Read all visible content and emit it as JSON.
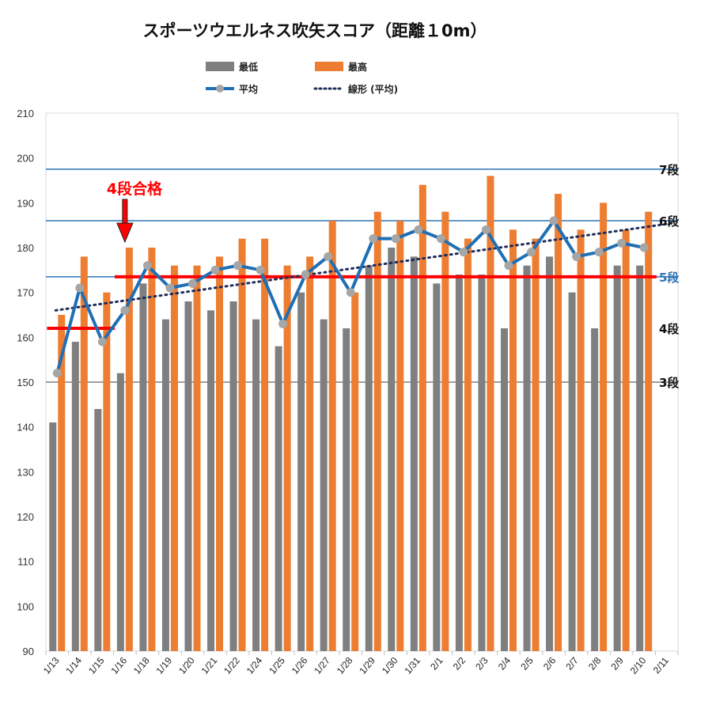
{
  "chart_data": {
    "type": "bar",
    "title": "スポーツウエルネス吹矢スコア（距離１0m）",
    "categories": [
      "1/13",
      "1/14",
      "1/15",
      "1/16",
      "1/18",
      "1/19",
      "1/20",
      "1/21",
      "1/22",
      "1/24",
      "1/25",
      "1/26",
      "1/27",
      "1/28",
      "1/29",
      "1/30",
      "1/31",
      "2/1",
      "2/2",
      "2/3",
      "2/4",
      "2/5",
      "2/6",
      "2/7",
      "2/8",
      "2/9",
      "2/10",
      "2/11"
    ],
    "series": [
      {
        "name": "最低",
        "type": "bar",
        "color": "#7f7f7f",
        "values": [
          141,
          159,
          144,
          152,
          172,
          164,
          168,
          166,
          168,
          164,
          158,
          170,
          164,
          162,
          176,
          180,
          178,
          172,
          174,
          174,
          162,
          176,
          178,
          170,
          162,
          176,
          176,
          null
        ]
      },
      {
        "name": "最高",
        "type": "bar",
        "color": "#ed7d31",
        "values": [
          165,
          178,
          170,
          180,
          180,
          176,
          176,
          178,
          182,
          182,
          176,
          178,
          186,
          170,
          188,
          186,
          194,
          188,
          182,
          196,
          184,
          182,
          192,
          184,
          190,
          184,
          188,
          null
        ]
      },
      {
        "name": "平均",
        "type": "line",
        "color": "#1f6fb4",
        "values": [
          152,
          171,
          159,
          166,
          176,
          171,
          172,
          175,
          176,
          175,
          163,
          174,
          178,
          170,
          182,
          182,
          184,
          182,
          179,
          184,
          176,
          179,
          186,
          178,
          179,
          181,
          180,
          null
        ]
      },
      {
        "name": "線形 (平均)",
        "type": "trendline",
        "color": "#1f2d5a",
        "from": 166,
        "to": 185.5
      }
    ],
    "ylim": [
      90,
      210
    ],
    "yticks": [
      90,
      100,
      110,
      120,
      130,
      140,
      150,
      160,
      170,
      180,
      190,
      200,
      210
    ],
    "legend_position": "top",
    "grid": false,
    "levels": [
      {
        "label": "7段",
        "value": 197.5,
        "color": "#2e75b6"
      },
      {
        "label": "6段",
        "value": 186,
        "color": "#2e75b6"
      },
      {
        "label": "5段",
        "value": 173.5,
        "color": "#2e75b6"
      },
      {
        "label": "4段",
        "value": null,
        "color": "#111111"
      },
      {
        "label": "3段",
        "value": 150,
        "color": "#7f7f7f"
      }
    ],
    "red_lines": [
      {
        "from": "1/13",
        "to": "1/15",
        "value": 162
      },
      {
        "from": "1/16",
        "to": "2/10",
        "value": 173.5
      }
    ],
    "annotation": {
      "text": "4段合格",
      "at": "1/16",
      "color": "#ff0000"
    }
  }
}
